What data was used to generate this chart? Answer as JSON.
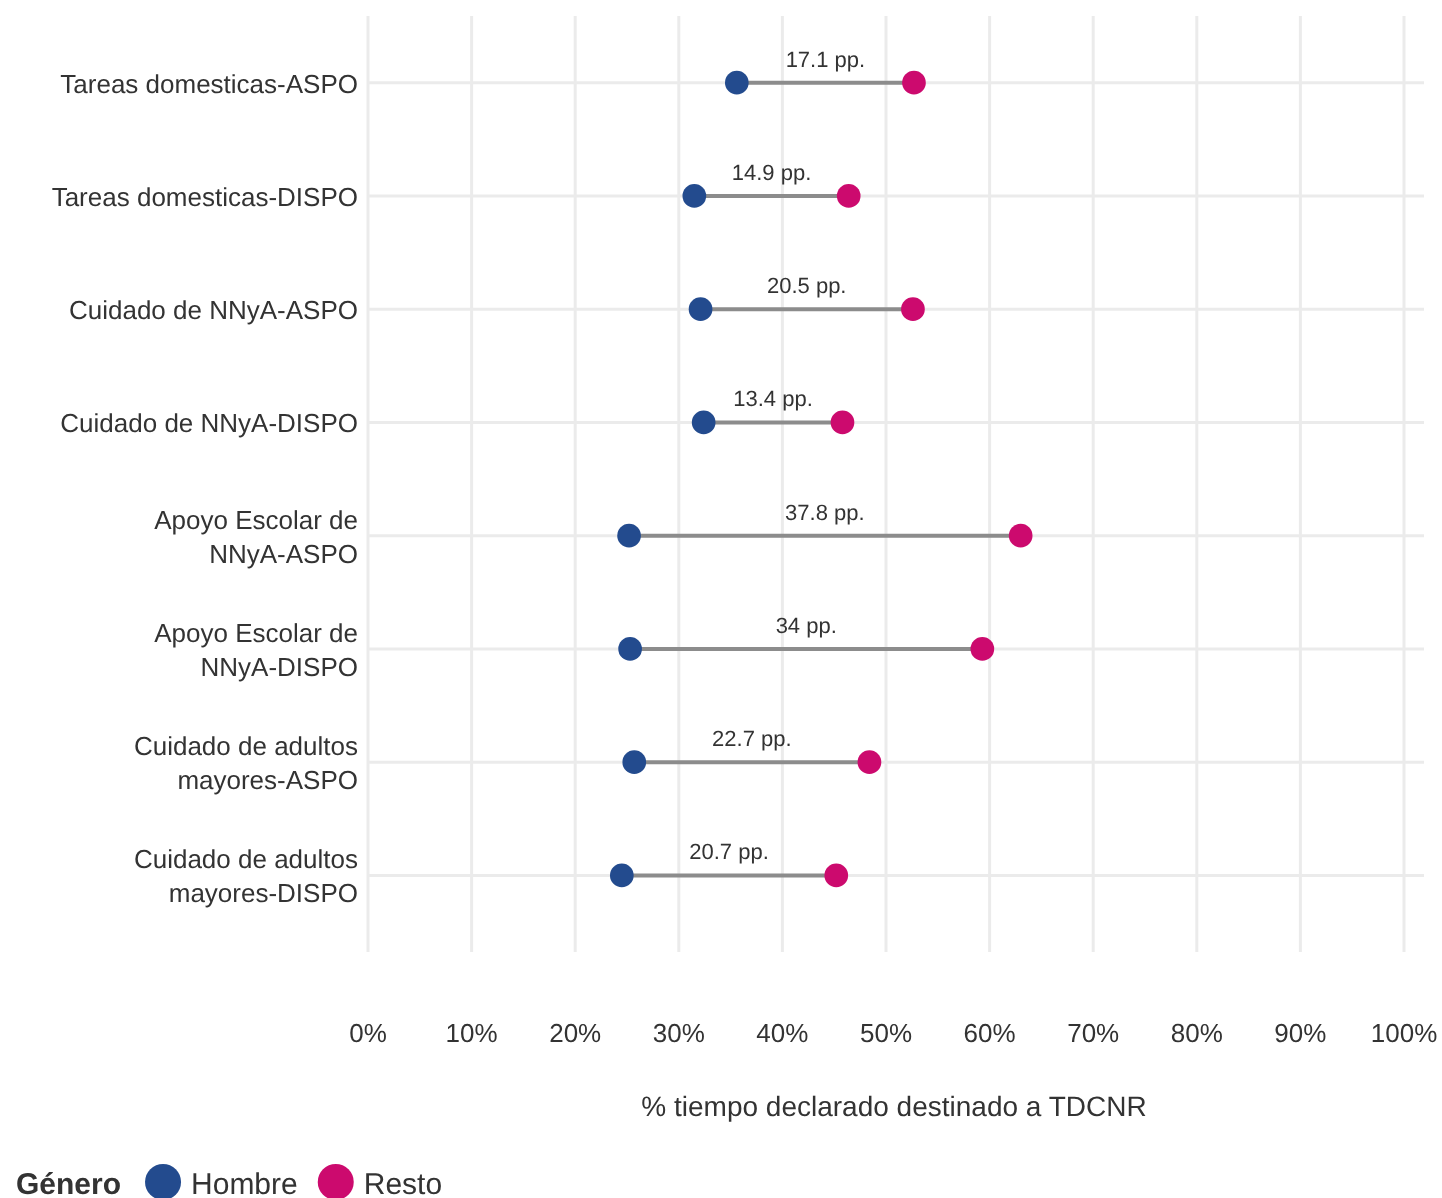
{
  "chart_data": {
    "type": "scatter",
    "orientation": "horizontal",
    "xlabel": "% tiempo declarado destinado a TDCNR",
    "legend_title": "Género",
    "legend": "bottom left",
    "grid": true,
    "marker": "circle",
    "categories": [
      "Tareas domesticas-ASPO",
      "Tareas domesticas-DISPO",
      "Cuidado de NNyA-ASPO",
      "Cuidado de NNyA-DISPO",
      "Apoyo Escolar de NNyA-ASPO",
      "Apoyo Escolar de NNyA-DISPO",
      "Cuidado de adultos mayores-ASPO",
      "Cuidado de adultos mayores-DISPO"
    ],
    "xlim": [
      0,
      100
    ],
    "xticks": [
      {
        "value": 0,
        "label": "0%"
      },
      {
        "value": 10,
        "label": "10%"
      },
      {
        "value": 20,
        "label": "20%"
      },
      {
        "value": 30,
        "label": "30%"
      },
      {
        "value": 40,
        "label": "40%"
      },
      {
        "value": 50,
        "label": "50%"
      },
      {
        "value": 60,
        "label": "60%"
      },
      {
        "value": 70,
        "label": "70%"
      },
      {
        "value": 80,
        "label": "80%"
      },
      {
        "value": 90,
        "label": "90%"
      },
      {
        "value": 100,
        "label": "100%"
      }
    ],
    "series": [
      {
        "name": "Hombre",
        "color": "#234b8e",
        "values": [
          35.6,
          31.5,
          32.1,
          32.4,
          25.2,
          25.3,
          25.7,
          24.5
        ]
      },
      {
        "name": "Resto",
        "color": "#cc0a6e",
        "values": [
          52.7,
          46.4,
          52.6,
          45.8,
          63.0,
          59.3,
          48.4,
          45.2
        ]
      }
    ],
    "annotations": [
      "17.1 pp.",
      "14.9 pp.",
      "20.5 pp.",
      "13.4 pp.",
      "37.8 pp.",
      "34 pp.",
      "22.7 pp.",
      "20.7 pp."
    ]
  }
}
